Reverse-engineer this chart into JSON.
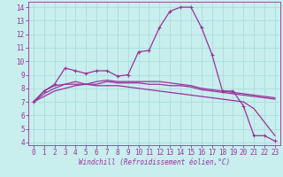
{
  "title": "",
  "xlabel": "Windchill (Refroidissement éolien,°C)",
  "ylabel": "",
  "bg_color": "#c8eeee",
  "line_color": "#993399",
  "grid_color": "#aadddd",
  "xlim": [
    -0.5,
    23.5
  ],
  "ylim": [
    3.8,
    14.4
  ],
  "xticks": [
    0,
    1,
    2,
    3,
    4,
    5,
    6,
    7,
    8,
    9,
    10,
    11,
    12,
    13,
    14,
    15,
    16,
    17,
    18,
    19,
    20,
    21,
    22,
    23
  ],
  "yticks": [
    4,
    5,
    6,
    7,
    8,
    9,
    10,
    11,
    12,
    13,
    14
  ],
  "lines": [
    {
      "x": [
        0,
        1,
        2,
        3,
        4,
        5,
        6,
        7,
        8,
        9,
        10,
        11,
        12,
        13,
        14,
        15,
        16,
        17,
        18,
        19,
        20,
        21,
        22,
        23
      ],
      "y": [
        7.0,
        7.8,
        8.3,
        9.5,
        9.3,
        9.1,
        9.3,
        9.3,
        8.9,
        9.0,
        10.7,
        10.8,
        12.5,
        13.7,
        14.0,
        14.0,
        12.5,
        10.5,
        7.8,
        7.8,
        6.7,
        4.5,
        4.5,
        4.1
      ],
      "marker": "+"
    },
    {
      "x": [
        0,
        1,
        2,
        3,
        4,
        5,
        6,
        7,
        8,
        9,
        10,
        11,
        12,
        13,
        14,
        15,
        16,
        17,
        18,
        19,
        20,
        21,
        22,
        23
      ],
      "y": [
        7.0,
        7.8,
        8.2,
        8.3,
        8.3,
        8.3,
        8.5,
        8.6,
        8.5,
        8.5,
        8.5,
        8.5,
        8.5,
        8.4,
        8.3,
        8.2,
        8.0,
        7.9,
        7.8,
        7.7,
        7.6,
        7.5,
        7.4,
        7.3
      ],
      "marker": null
    },
    {
      "x": [
        0,
        1,
        2,
        3,
        4,
        5,
        6,
        7,
        8,
        9,
        10,
        11,
        12,
        13,
        14,
        15,
        16,
        17,
        18,
        19,
        20,
        21,
        22,
        23
      ],
      "y": [
        7.0,
        7.6,
        8.0,
        8.3,
        8.5,
        8.3,
        8.3,
        8.5,
        8.4,
        8.4,
        8.4,
        8.3,
        8.3,
        8.2,
        8.2,
        8.1,
        7.9,
        7.8,
        7.7,
        7.6,
        7.5,
        7.4,
        7.3,
        7.2
      ],
      "marker": null
    },
    {
      "x": [
        0,
        1,
        2,
        3,
        4,
        5,
        6,
        7,
        8,
        9,
        10,
        11,
        12,
        13,
        14,
        15,
        16,
        17,
        18,
        19,
        20,
        21,
        22,
        23
      ],
      "y": [
        7.0,
        7.4,
        7.8,
        8.0,
        8.2,
        8.3,
        8.2,
        8.2,
        8.2,
        8.1,
        8.0,
        7.9,
        7.8,
        7.7,
        7.6,
        7.5,
        7.4,
        7.3,
        7.2,
        7.1,
        7.0,
        6.5,
        5.5,
        4.5
      ],
      "marker": null
    }
  ],
  "tick_fontsize": 5.5,
  "xlabel_fontsize": 5.5
}
